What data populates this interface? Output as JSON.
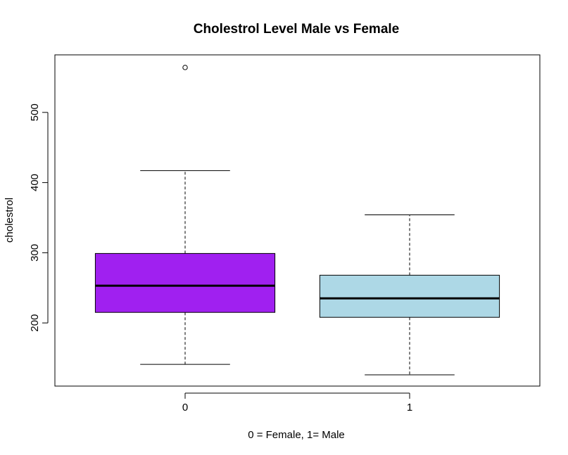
{
  "chart_data": {
    "type": "boxplot",
    "title": "Cholestrol Level Male vs Female",
    "xlabel": "0 = Female, 1= Male",
    "ylabel": "cholestrol",
    "categories": [
      "0",
      "1"
    ],
    "yticks": [
      200,
      300,
      400,
      500
    ],
    "ylim": [
      110,
      582
    ],
    "boxes": [
      {
        "category": "0",
        "color": "#a020f0",
        "whisker_low": 141,
        "q1": 215,
        "median": 253,
        "q3": 299,
        "whisker_high": 417,
        "outliers": [
          564
        ]
      },
      {
        "category": "1",
        "color": "#add8e6",
        "whisker_low": 126,
        "q1": 208,
        "median": 235,
        "q3": 268,
        "whisker_high": 354,
        "outliers": []
      }
    ],
    "grid": false,
    "legend": "none"
  }
}
